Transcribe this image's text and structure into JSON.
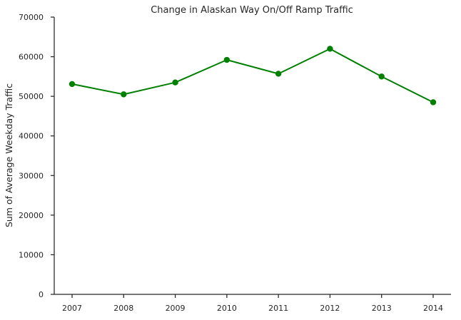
{
  "chart_data": {
    "type": "line",
    "title": "Change in Alaskan Way On/Off Ramp Traffic",
    "xlabel": "",
    "ylabel": "Sum of Average Weekday Traffic",
    "categories": [
      "2007",
      "2008",
      "2009",
      "2010",
      "2011",
      "2012",
      "2013",
      "2014"
    ],
    "series": [
      {
        "values": [
          53100,
          50500,
          53500,
          59200,
          55700,
          62000,
          55000,
          48500
        ],
        "color": "#008000",
        "marker": "circle"
      }
    ],
    "ylim": [
      0,
      70000
    ],
    "yticks": [
      0,
      10000,
      20000,
      30000,
      40000,
      50000,
      60000,
      70000
    ],
    "grid": false,
    "legend": "none"
  }
}
